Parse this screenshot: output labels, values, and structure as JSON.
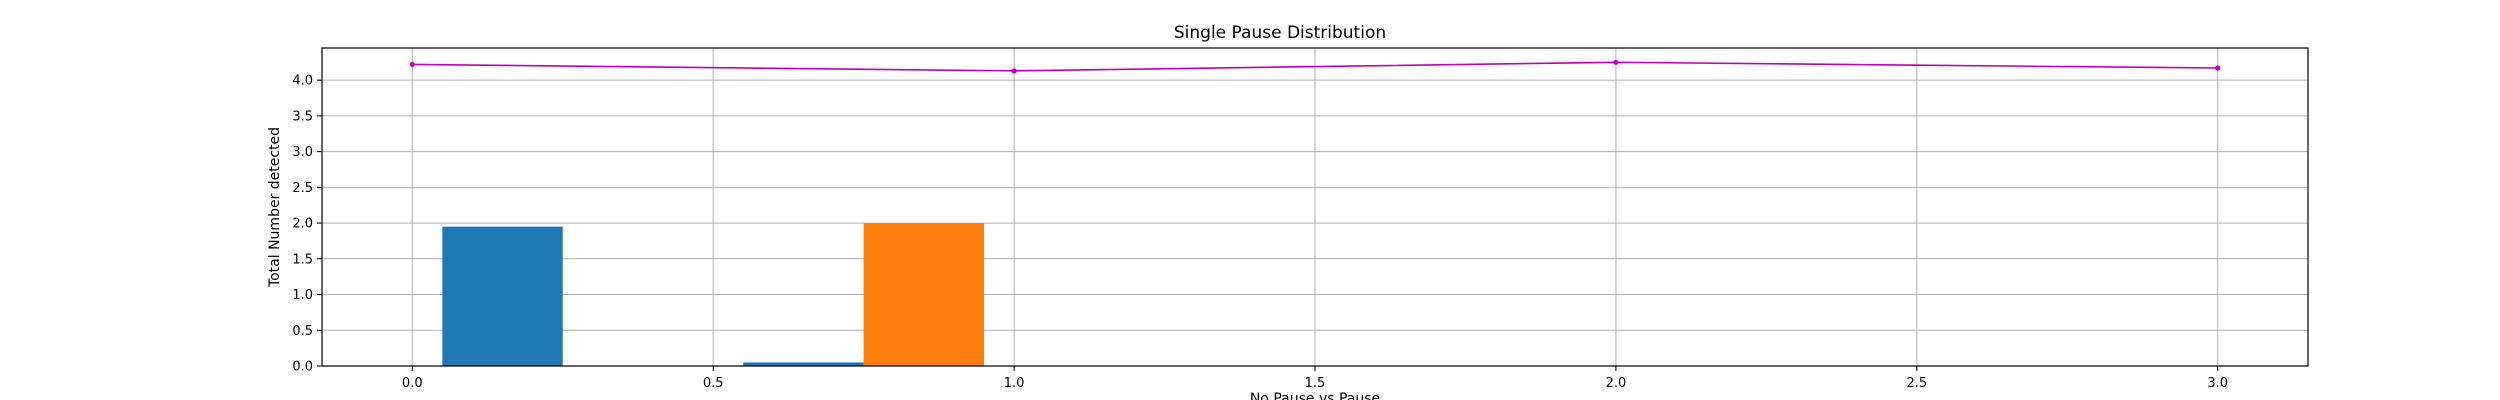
{
  "chart_data": {
    "type": "bar",
    "title": "Single Pause Distribution",
    "xlabel": "No Pause vs Pause",
    "ylabel": "Total Number detected",
    "xlim": [
      -0.15,
      3.15
    ],
    "ylim": [
      0,
      4.45
    ],
    "xticks": [
      "0.0",
      "0.5",
      "1.0",
      "1.5",
      "2.0",
      "2.5",
      "3.0"
    ],
    "yticks": [
      "0.0",
      "0.5",
      "1.0",
      "1.5",
      "2.0",
      "2.5",
      "3.0",
      "3.5",
      "4.0"
    ],
    "grid": true,
    "bars": [
      {
        "x_start": 0.05,
        "x_end": 0.25,
        "value": 1.95,
        "color": "#1f77b4"
      },
      {
        "x_start": 0.55,
        "x_end": 0.75,
        "value": 0.05,
        "color": "#1f77b4"
      },
      {
        "x_start": 0.75,
        "x_end": 0.95,
        "value": 2.0,
        "color": "#ff7f0e"
      }
    ],
    "line": {
      "color": "#bf00bf",
      "x": [
        0,
        1,
        2,
        3
      ],
      "y": [
        4.22,
        4.13,
        4.25,
        4.17
      ]
    }
  }
}
